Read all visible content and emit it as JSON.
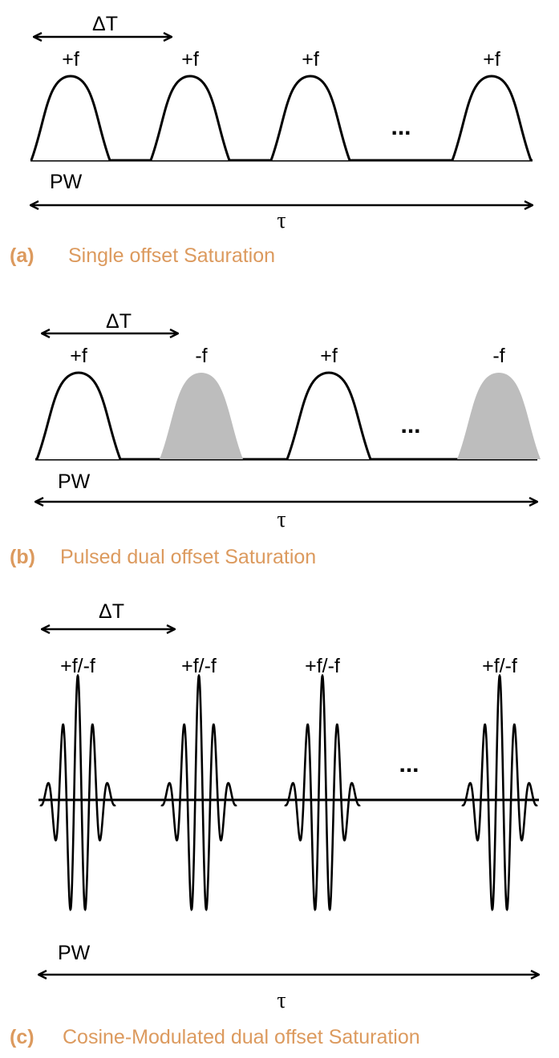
{
  "panels": [
    {
      "id": "a",
      "caption_id": "(a)",
      "caption": "Single offset Saturation",
      "delta_label": "ΔT",
      "pw_label": "PW",
      "tau_label": "τ",
      "ellipsis": "...",
      "pulses": [
        {
          "label": "+f",
          "fill": "white"
        },
        {
          "label": "+f",
          "fill": "white"
        },
        {
          "label": "+f",
          "fill": "white"
        },
        {
          "label": "+f",
          "fill": "white"
        }
      ]
    },
    {
      "id": "b",
      "caption_id": "(b)",
      "caption": "Pulsed dual offset Saturation",
      "delta_label": "ΔT",
      "pw_label": "PW",
      "tau_label": "τ",
      "ellipsis": "...",
      "pulses": [
        {
          "label": "+f",
          "fill": "white"
        },
        {
          "label": "-f",
          "fill": "gray"
        },
        {
          "label": "+f",
          "fill": "white"
        },
        {
          "label": "-f",
          "fill": "gray"
        }
      ]
    },
    {
      "id": "c",
      "caption_id": "(c)",
      "caption": "Cosine-Modulated dual offset Saturation",
      "delta_label": "ΔT",
      "pw_label": "PW",
      "tau_label": "τ",
      "ellipsis": "...",
      "pulses": [
        {
          "label": "+f/-f",
          "fill": "modulated"
        },
        {
          "label": "+f/-f",
          "fill": "modulated"
        },
        {
          "label": "+f/-f",
          "fill": "modulated"
        },
        {
          "label": "+f/-f",
          "fill": "modulated"
        }
      ]
    }
  ],
  "colors": {
    "caption": "#dc9a5e",
    "gray_pulse": "#bdbdbd",
    "line": "#000000"
  }
}
